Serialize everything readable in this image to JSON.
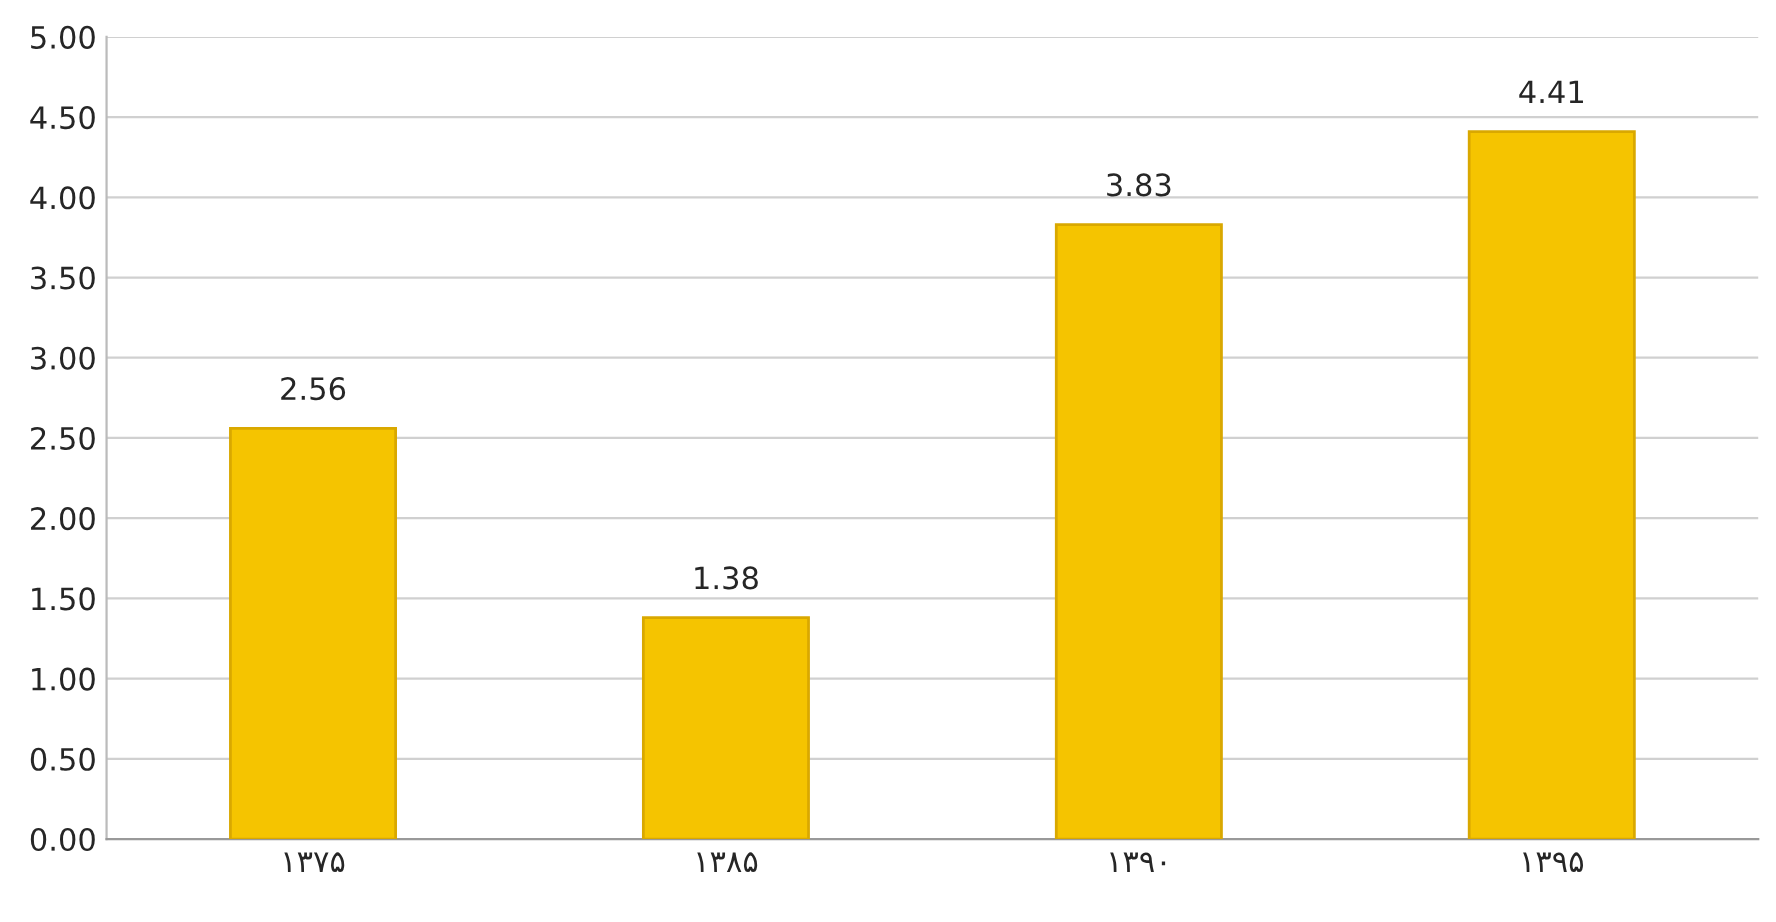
{
  "chart_data": {
    "type": "bar",
    "categories": [
      "۱۳۷۵",
      "۱۳۸۵",
      "۱۳۹۰",
      "۱۳۹۵"
    ],
    "values": [
      2.56,
      1.38,
      3.83,
      4.41
    ],
    "color": "#f5c400",
    "value_labels": [
      "2.56",
      "1.38",
      "3.83",
      "4.41"
    ],
    "ylim": [
      0,
      5
    ],
    "yticks": [
      {
        "value": 0,
        "label": "0.00"
      },
      {
        "value": 0.5,
        "label": "0.50"
      },
      {
        "value": 1,
        "label": "1.00"
      },
      {
        "value": 1.5,
        "label": "1.50"
      },
      {
        "value": 2,
        "label": "2.00"
      },
      {
        "value": 2.5,
        "label": "2.50"
      },
      {
        "value": 3,
        "label": "3.00"
      },
      {
        "value": 3.5,
        "label": "3.50"
      },
      {
        "value": 4,
        "label": "4.00"
      },
      {
        "value": 4.5,
        "label": "4.50"
      },
      {
        "value": 5,
        "label": "5.00"
      }
    ],
    "grid": "y"
  }
}
